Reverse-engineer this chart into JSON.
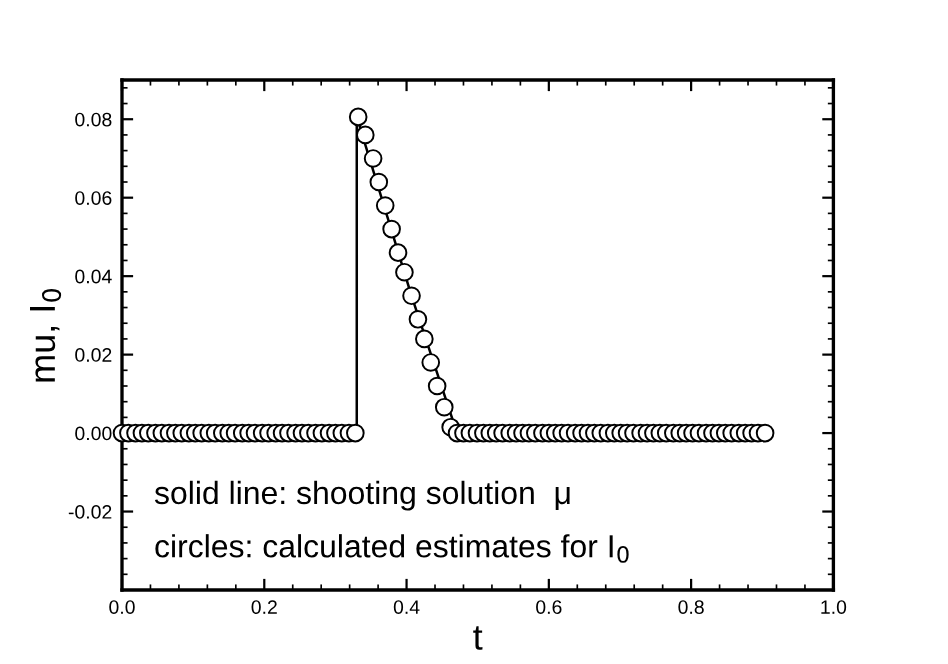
{
  "chart_data": {
    "type": "scatter",
    "xlabel": "t",
    "ylabel": "mu, I$_{0}$",
    "xlim": [
      0,
      1
    ],
    "ylim": [
      -0.04,
      0.09
    ],
    "xticks": [
      {
        "value": 0,
        "label": "0.0"
      },
      {
        "value": 0.2,
        "label": "0.2"
      },
      {
        "value": 0.4,
        "label": "0.4"
      },
      {
        "value": 0.6,
        "label": "0.6"
      },
      {
        "value": 0.8,
        "label": "0.8"
      },
      {
        "value": 1,
        "label": "1.0"
      }
    ],
    "yticks": [
      {
        "value": -0.02,
        "label": "-0.02"
      },
      {
        "value": 0,
        "label": "0.00"
      },
      {
        "value": 0.02,
        "label": "0.02"
      },
      {
        "value": 0.04,
        "label": "0.04"
      },
      {
        "value": 0.06,
        "label": "0.06"
      },
      {
        "value": 0.08,
        "label": "0.08"
      }
    ],
    "grid": false,
    "legend": false,
    "annotations": [
      "solid line: shooting solution  μ",
      "circles: calculated estimates for I$_{0}$"
    ],
    "series": [
      {
        "type": "line",
        "color": "#000000",
        "line_style": "solid",
        "marker": "none",
        "x": [
          0,
          0.33,
          0.33,
          0.407,
          0.471,
          0.904
        ],
        "values": [
          0,
          0,
          0.0806,
          0.035,
          0,
          0
        ]
      },
      {
        "color": "#000000",
        "marker": "circle",
        "x": [
          0,
          0.009,
          0.019,
          0.028,
          0.037,
          0.047,
          0.056,
          0.066,
          0.075,
          0.084,
          0.094,
          0.103,
          0.112,
          0.122,
          0.131,
          0.141,
          0.15,
          0.159,
          0.169,
          0.178,
          0.187,
          0.197,
          0.206,
          0.216,
          0.225,
          0.234,
          0.244,
          0.253,
          0.262,
          0.272,
          0.281,
          0.291,
          0.3,
          0.309,
          0.319,
          0.328,
          0.332,
          0.342,
          0.353,
          0.361,
          0.37,
          0.379,
          0.388,
          0.397,
          0.407,
          0.416,
          0.425,
          0.434,
          0.443,
          0.453,
          0.462,
          0.471,
          0.48,
          0.489,
          0.499,
          0.508,
          0.517,
          0.526,
          0.535,
          0.545,
          0.554,
          0.563,
          0.572,
          0.581,
          0.591,
          0.6,
          0.609,
          0.618,
          0.627,
          0.637,
          0.646,
          0.655,
          0.664,
          0.673,
          0.683,
          0.692,
          0.701,
          0.71,
          0.719,
          0.729,
          0.738,
          0.747,
          0.756,
          0.765,
          0.775,
          0.784,
          0.793,
          0.802,
          0.811,
          0.821,
          0.83,
          0.839,
          0.848,
          0.857,
          0.867,
          0.876,
          0.885,
          0.894,
          0.904
        ],
        "values": [
          0,
          0,
          0,
          0,
          0,
          0,
          0,
          0,
          0,
          0,
          0,
          0,
          0,
          0,
          0,
          0,
          0,
          0,
          0,
          0,
          0,
          0,
          0,
          0,
          0,
          0,
          0,
          0,
          0,
          0,
          0,
          0,
          0,
          0,
          0,
          0,
          0.0806,
          0.076,
          0.07,
          0.064,
          0.058,
          0.052,
          0.046,
          0.041,
          0.035,
          0.029,
          0.024,
          0.018,
          0.012,
          0.0066,
          0.0015,
          0,
          0,
          0,
          0,
          0,
          0,
          0,
          0,
          0,
          0,
          0,
          0,
          0,
          0,
          0,
          0,
          0,
          0,
          0,
          0,
          0,
          0,
          0,
          0,
          0,
          0,
          0,
          0,
          0,
          0,
          0,
          0,
          0,
          0,
          0,
          0,
          0,
          0,
          0,
          0,
          0,
          0,
          0,
          0,
          0,
          0,
          0,
          0
        ]
      }
    ]
  }
}
